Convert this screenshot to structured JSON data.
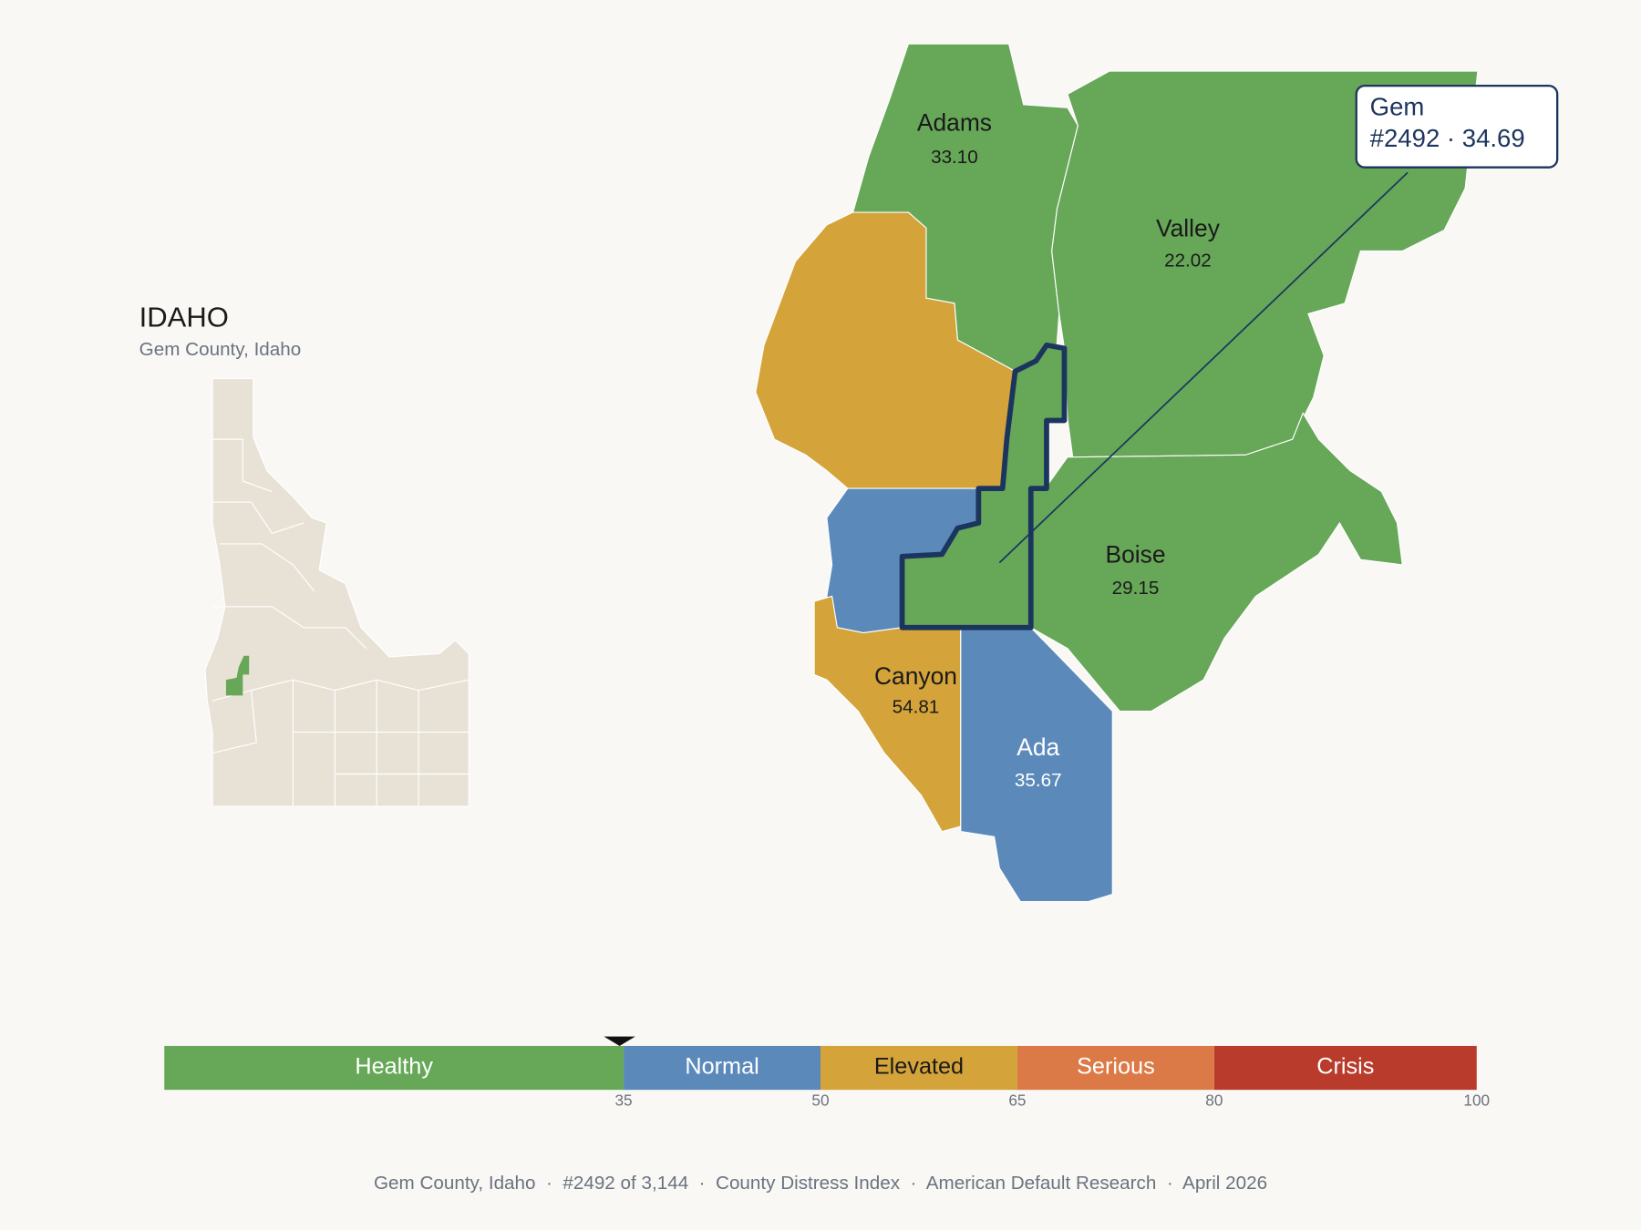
{
  "header": {
    "title": "IDAHO",
    "subtitle": "Gem County, Idaho"
  },
  "counties": [
    {
      "name": "Adams",
      "score": "33.10"
    },
    {
      "name": "Valley",
      "score": "22.02"
    },
    {
      "name": "Boise",
      "score": "29.15"
    },
    {
      "name": "Canyon",
      "score": "54.81"
    },
    {
      "name": "Ada",
      "score": "35.67"
    }
  ],
  "tooltip": {
    "name": "Gem",
    "detail": "#2492 · 34.69"
  },
  "scale": {
    "range": [
      0,
      100
    ],
    "marker": 34.69,
    "segments": [
      {
        "label": "Healthy",
        "end": 35,
        "color": "#66a758"
      },
      {
        "label": "Normal",
        "end": 50,
        "color": "#5b8aba"
      },
      {
        "label": "Elevated",
        "end": 65,
        "color": "#d4a33a"
      },
      {
        "label": "Serious",
        "end": 80,
        "color": "#dc7a47"
      },
      {
        "label": "Crisis",
        "end": 100,
        "color": "#b93b2c"
      }
    ]
  },
  "footer": "Gem County, Idaho  ·  #2492 of 3,144  ·  County Distress Index  ·  American Default Research  ·  April 2026"
}
